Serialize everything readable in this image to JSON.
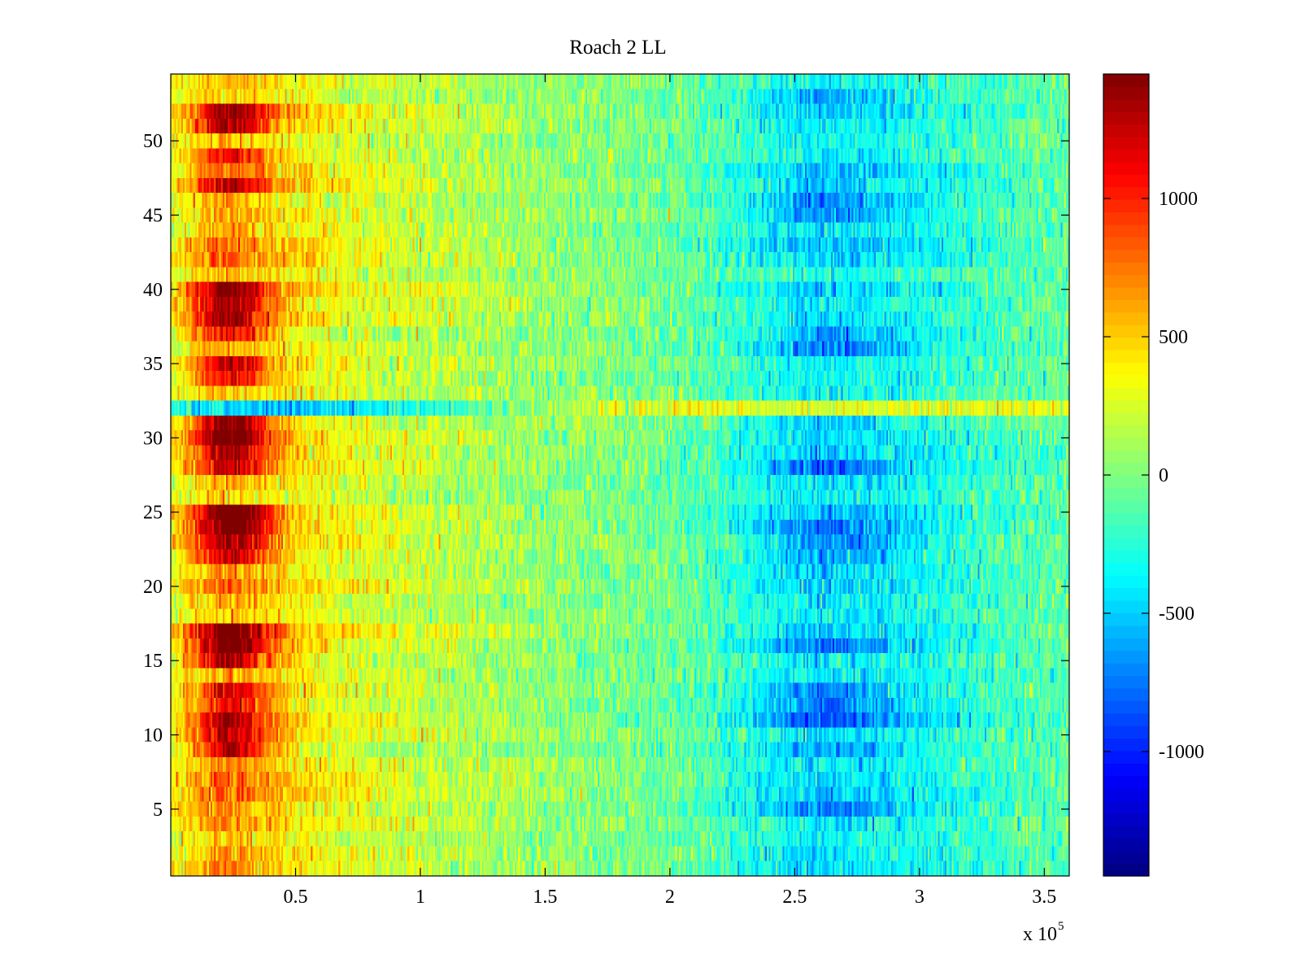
{
  "chart_data": {
    "type": "heatmap",
    "title": "Roach 2 LL",
    "xlabel": "",
    "ylabel": "",
    "x_axis": {
      "range": [
        0,
        360000
      ],
      "ticks": [
        50000,
        100000,
        150000,
        200000,
        250000,
        300000,
        350000
      ],
      "tick_labels": [
        "0.5",
        "1",
        "1.5",
        "2",
        "2.5",
        "3",
        "3.5"
      ],
      "multiplier_label": "x 10",
      "multiplier_exponent": "5"
    },
    "y_axis": {
      "range": [
        0.5,
        54.5
      ],
      "ticks": [
        5,
        10,
        15,
        20,
        25,
        30,
        35,
        40,
        45,
        50
      ],
      "tick_labels": [
        "5",
        "10",
        "15",
        "20",
        "25",
        "30",
        "35",
        "40",
        "45",
        "50"
      ]
    },
    "colorbar": {
      "colormap": "jet",
      "range": [
        -1450,
        1450
      ],
      "ticks": [
        -1000,
        -500,
        0,
        500,
        1000
      ],
      "tick_labels": [
        "-1000",
        "-500",
        "0",
        "500",
        "1000"
      ]
    },
    "grid": false,
    "rows": 54,
    "profile_x": [
      0,
      20000,
      45000,
      70000,
      100000,
      150000,
      200000,
      230000,
      260000,
      300000,
      340000,
      360000
    ],
    "profile_value": [
      300,
      700,
      450,
      300,
      200,
      50,
      -50,
      -250,
      -450,
      -320,
      -150,
      -100
    ],
    "row_hot_strength": {
      "9": 1.5,
      "10": 1.1,
      "11": 1.0,
      "12": 1.2,
      "13": 1.1,
      "15": 1.5,
      "16": 1.8,
      "17": 1.5,
      "22": 1.2,
      "23": 1.3,
      "24": 1.6,
      "25": 1.7,
      "28": 1.0,
      "29": 1.2,
      "30": 1.7,
      "31": 1.8,
      "34": 1.0,
      "35": 1.2,
      "37": 1.2,
      "38": 1.3,
      "39": 1.4,
      "40": 1.1,
      "47": 1.0,
      "49": 1.0,
      "51": 1.2,
      "52": 1.3
    },
    "row_cold_strength": {
      "5": 0.9,
      "9": 1.1,
      "11": 1.2,
      "12": 1.4,
      "13": 1.3,
      "16": 1.2,
      "22": 1.1,
      "23": 1.1,
      "24": 1.1,
      "28": 1.2,
      "31": 0.7,
      "36": 1.1,
      "37": 1.0,
      "45": 1.2,
      "46": 1.1,
      "53": 1.0
    },
    "anomalous_row": {
      "row": 32,
      "profile_x": [
        0,
        20000,
        55000,
        80000,
        120000,
        160000,
        200000,
        260000,
        320000,
        360000
      ],
      "profile_value": [
        -300,
        -450,
        -650,
        -400,
        -150,
        150,
        350,
        300,
        300,
        350
      ]
    },
    "noise_amplitude": 260
  }
}
